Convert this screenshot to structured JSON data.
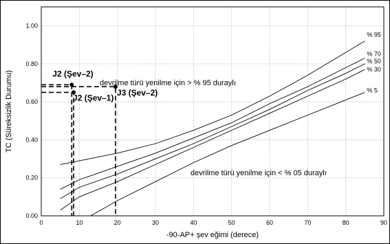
{
  "chart_data": {
    "type": "line",
    "title": "",
    "xlabel": "-90-AP+ şev eğimi (derece)",
    "ylabel": "TC (Süreksizlik Durumu)",
    "xlim": [
      0,
      90
    ],
    "ylim": [
      0,
      1.1
    ],
    "x_ticks": [
      "0",
      "10",
      "20",
      "30",
      "40",
      "50",
      "60",
      "70",
      "80",
      "90"
    ],
    "y_ticks": [
      "0.00",
      "0.20",
      "0.40",
      "0.60",
      "0.80",
      "1.00"
    ],
    "grid": true,
    "series": [
      {
        "name": "% 95",
        "points": [
          [
            5,
            0.27
          ],
          [
            10,
            0.29
          ],
          [
            20,
            0.33
          ],
          [
            30,
            0.38
          ],
          [
            40,
            0.45
          ],
          [
            50,
            0.53
          ],
          [
            60,
            0.63
          ],
          [
            70,
            0.74
          ],
          [
            80,
            0.86
          ],
          [
            85,
            0.92
          ]
        ]
      },
      {
        "name": "% 70",
        "points": [
          [
            5,
            0.14
          ],
          [
            10,
            0.19
          ],
          [
            20,
            0.26
          ],
          [
            30,
            0.33
          ],
          [
            40,
            0.41
          ],
          [
            50,
            0.49
          ],
          [
            60,
            0.59
          ],
          [
            70,
            0.68
          ],
          [
            80,
            0.78
          ],
          [
            85,
            0.83
          ]
        ]
      },
      {
        "name": "% 50",
        "points": [
          [
            5,
            0.09
          ],
          [
            10,
            0.15
          ],
          [
            20,
            0.22
          ],
          [
            30,
            0.3
          ],
          [
            40,
            0.38
          ],
          [
            50,
            0.47
          ],
          [
            60,
            0.56
          ],
          [
            70,
            0.66
          ],
          [
            80,
            0.75
          ],
          [
            85,
            0.8
          ]
        ]
      },
      {
        "name": "% 30",
        "points": [
          [
            5,
            0.03
          ],
          [
            10,
            0.1
          ],
          [
            20,
            0.18
          ],
          [
            30,
            0.27
          ],
          [
            40,
            0.36
          ],
          [
            50,
            0.45
          ],
          [
            60,
            0.54
          ],
          [
            70,
            0.63
          ],
          [
            80,
            0.72
          ],
          [
            85,
            0.77
          ]
        ]
      },
      {
        "name": "% 5",
        "points": [
          [
            13,
            0.0
          ],
          [
            20,
            0.08
          ],
          [
            30,
            0.18
          ],
          [
            40,
            0.28
          ],
          [
            50,
            0.37
          ],
          [
            60,
            0.45
          ],
          [
            70,
            0.53
          ],
          [
            80,
            0.61
          ],
          [
            85,
            0.65
          ]
        ]
      }
    ],
    "marked_points": [
      {
        "label": "J2 (Şev–2)",
        "x": 8,
        "y": 0.69
      },
      {
        "label": "J2 (Şev–1)",
        "x": 8.5,
        "y": 0.65
      },
      {
        "label": "J3 (Şev–2)",
        "x": 19.5,
        "y": 0.68
      }
    ],
    "annotations": [
      "devrilme türü yenilme için > % 95 duraylı",
      "devrilme türü yenilme için < % 05 duraylı"
    ]
  }
}
